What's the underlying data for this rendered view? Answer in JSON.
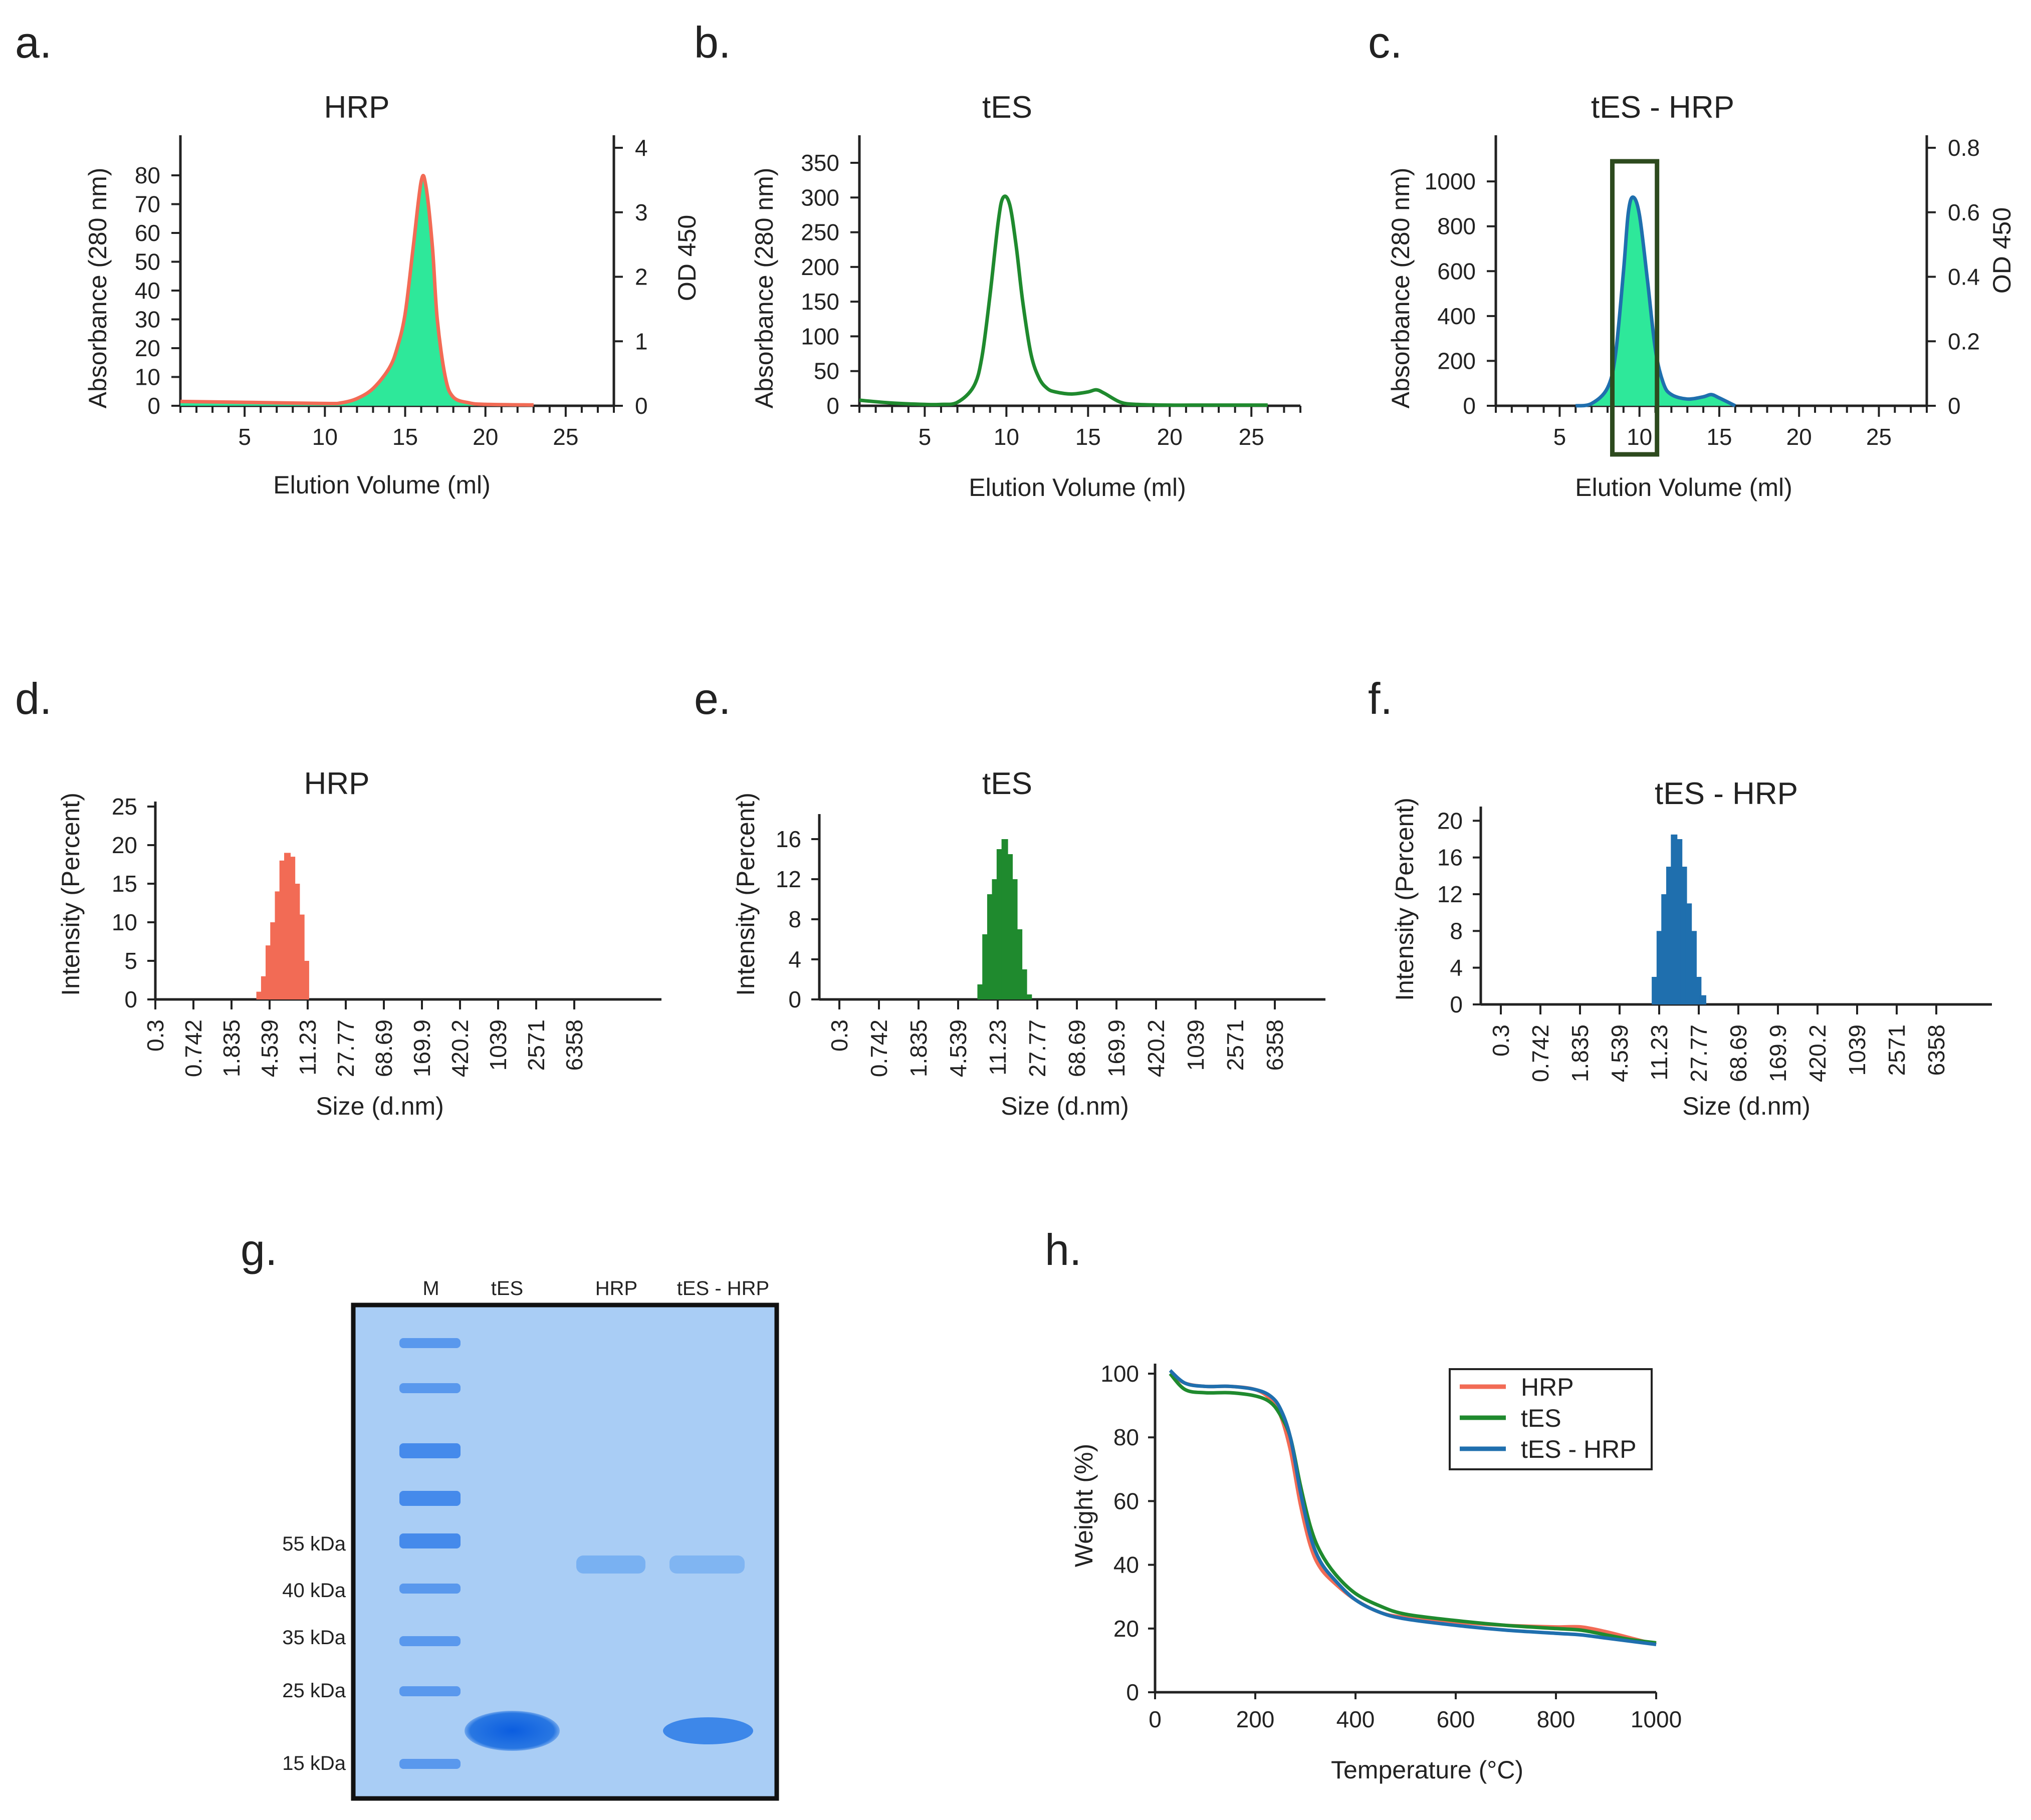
{
  "panel_labels": [
    "a.",
    "b.",
    "c.",
    "d.",
    "e.",
    "f.",
    "g.",
    "h."
  ],
  "colors": {
    "hrp": "#f26b55",
    "tes": "#1f8a2e",
    "tes_hrp": "#1f6fae",
    "fill": "#2ee89a",
    "box": "#2d4a1e",
    "gel_bg": "#a9cdf5",
    "band": "#1a6de0"
  },
  "chart_data": [
    {
      "id": "a",
      "type": "area",
      "title": "HRP",
      "xlabel": "Elution Volume (ml)",
      "ylabel": "Absorbance (280 nm)",
      "y2label": "OD 450",
      "xlim": [
        1,
        28
      ],
      "ylim": [
        0,
        80
      ],
      "y2lim": [
        0,
        4
      ],
      "xticks": [
        5,
        10,
        15,
        20,
        25
      ],
      "yticks": [
        0,
        10,
        20,
        30,
        40,
        50,
        60,
        70,
        80
      ],
      "y2ticks": [
        0,
        1,
        2,
        3,
        4
      ],
      "fill": true,
      "fill_range": [
        11,
        18
      ],
      "series": [
        {
          "x": [
            1,
            5,
            10,
            11,
            12,
            13,
            14,
            14.5,
            15,
            15.5,
            16,
            16.3,
            16.7,
            17,
            17.5,
            18,
            19,
            20,
            23
          ],
          "y": [
            1.5,
            1.2,
            0.8,
            1,
            2.5,
            6,
            13,
            20,
            32,
            55,
            78,
            76,
            55,
            30,
            10,
            3,
            1,
            0.5,
            0.3
          ]
        }
      ]
    },
    {
      "id": "b",
      "type": "line",
      "title": "tES",
      "xlabel": "Elution Volume (ml)",
      "ylabel": "Absorbance (280 nm)",
      "xlim": [
        1,
        28
      ],
      "ylim": [
        0,
        350
      ],
      "xticks": [
        5,
        10,
        15,
        20,
        25
      ],
      "yticks": [
        0,
        50,
        100,
        150,
        200,
        250,
        300,
        350
      ],
      "series": [
        {
          "x": [
            1,
            3,
            5,
            6,
            7,
            8,
            8.5,
            9,
            9.5,
            9.8,
            10.2,
            10.6,
            11,
            11.5,
            12,
            12.5,
            13,
            14,
            15,
            15.5,
            16,
            17,
            18,
            20,
            22,
            24,
            26
          ],
          "y": [
            8,
            4,
            2,
            2,
            5,
            28,
            70,
            160,
            265,
            300,
            290,
            230,
            150,
            75,
            40,
            25,
            20,
            17,
            20,
            23,
            18,
            5,
            2,
            1,
            1,
            1,
            1
          ]
        }
      ]
    },
    {
      "id": "c",
      "type": "area",
      "title": "tES - HRP",
      "xlabel": "Elution Volume (ml)",
      "ylabel": "Absorbance (280 nm)",
      "y2label": "OD 450",
      "xlim": [
        1,
        28
      ],
      "ylim": [
        0,
        1150
      ],
      "y2lim": [
        0,
        0.8
      ],
      "xticks": [
        5,
        10,
        15,
        20,
        25
      ],
      "yticks": [
        0,
        200,
        400,
        600,
        800,
        1000
      ],
      "y2ticks": [
        0,
        0.2,
        0.4,
        0.6,
        0.8
      ],
      "fill": true,
      "fill_range": [
        6,
        16
      ],
      "box_range": [
        8.3,
        11.1
      ],
      "series": [
        {
          "x": [
            6,
            7,
            8,
            8.5,
            9,
            9.3,
            9.6,
            10,
            10.5,
            11,
            11.5,
            12,
            13,
            14,
            14.5,
            15,
            16
          ],
          "y": [
            0,
            10,
            80,
            230,
            600,
            860,
            930,
            850,
            560,
            250,
            100,
            50,
            30,
            40,
            50,
            35,
            0
          ]
        }
      ]
    },
    {
      "id": "d",
      "type": "bar",
      "title": "HRP",
      "xlabel": "Size (d.nm)",
      "ylabel": "Intensity (Percent)",
      "scale": "log",
      "xticks": [
        "0.3",
        "0.742",
        "1.835",
        "4.539",
        "11.23",
        "27.77",
        "68.69",
        "169.9",
        "420.2",
        "1039",
        "2571",
        "6358"
      ],
      "ylim": [
        0,
        25
      ],
      "yticks": [
        0,
        5,
        10,
        15,
        20,
        25
      ],
      "bars": [
        {
          "x": 3.58,
          "y": 1
        },
        {
          "x": 4.0,
          "y": 3
        },
        {
          "x": 4.46,
          "y": 7
        },
        {
          "x": 4.98,
          "y": 10
        },
        {
          "x": 5.56,
          "y": 14
        },
        {
          "x": 6.2,
          "y": 18
        },
        {
          "x": 6.93,
          "y": 19
        },
        {
          "x": 7.73,
          "y": 18.5
        },
        {
          "x": 8.63,
          "y": 15
        },
        {
          "x": 9.64,
          "y": 11
        },
        {
          "x": 10.76,
          "y": 5
        }
      ]
    },
    {
      "id": "e",
      "type": "bar",
      "title": "tES",
      "xlabel": "Size (d.nm)",
      "ylabel": "Intensity (Percent)",
      "scale": "log",
      "xticks": [
        "0.3",
        "0.742",
        "1.835",
        "4.539",
        "11.23",
        "27.77",
        "68.69",
        "169.9",
        "420.2",
        "1039",
        "2571",
        "6358"
      ],
      "ylim": [
        0,
        18
      ],
      "yticks": [
        0,
        4,
        8,
        12,
        16
      ],
      "bars": [
        {
          "x": 7.6,
          "y": 1.5
        },
        {
          "x": 8.5,
          "y": 6.5
        },
        {
          "x": 9.5,
          "y": 10.5
        },
        {
          "x": 10.6,
          "y": 12
        },
        {
          "x": 11.8,
          "y": 15
        },
        {
          "x": 13.2,
          "y": 16
        },
        {
          "x": 14.7,
          "y": 14.5
        },
        {
          "x": 16.4,
          "y": 12
        },
        {
          "x": 18.3,
          "y": 7
        },
        {
          "x": 20.4,
          "y": 3
        },
        {
          "x": 22.8,
          "y": 0.5
        }
      ]
    },
    {
      "id": "f",
      "type": "bar",
      "title": "tES  - HRP",
      "xlabel": "Size (d.nm)",
      "ylabel": "Intensity (Percent)",
      "scale": "log",
      "xticks": [
        "0.3",
        "0.742",
        "1.835",
        "4.539",
        "11.23",
        "27.77",
        "68.69",
        "169.9",
        "420.2",
        "1039",
        "2571",
        "6358"
      ],
      "ylim": [
        0,
        21
      ],
      "yticks": [
        0,
        4,
        8,
        12,
        16,
        20
      ],
      "bars": [
        {
          "x": 10.2,
          "y": 3
        },
        {
          "x": 11.4,
          "y": 8
        },
        {
          "x": 12.7,
          "y": 12
        },
        {
          "x": 14.2,
          "y": 15
        },
        {
          "x": 15.8,
          "y": 18.5
        },
        {
          "x": 17.7,
          "y": 18
        },
        {
          "x": 19.7,
          "y": 15
        },
        {
          "x": 22.0,
          "y": 11
        },
        {
          "x": 24.6,
          "y": 8
        },
        {
          "x": 27.4,
          "y": 3
        },
        {
          "x": 30.6,
          "y": 1
        }
      ]
    },
    {
      "id": "g",
      "type": "table",
      "kind": "gel",
      "lanes": [
        "M",
        "tES",
        "HRP",
        "tES - HRP"
      ],
      "markers": [
        "55 kDa",
        "40 kDa",
        "35 kDa",
        "25 kDa",
        "15 kDa"
      ]
    },
    {
      "id": "h",
      "type": "line",
      "xlabel": "Temperature (°C)",
      "ylabel": "Weight (%)",
      "xlim": [
        0,
        1000
      ],
      "ylim": [
        0,
        100
      ],
      "xticks": [
        0,
        200,
        400,
        600,
        800,
        1000
      ],
      "yticks": [
        0,
        20,
        40,
        60,
        80,
        100
      ],
      "legend": "top-right",
      "series": [
        {
          "name": "HRP",
          "x": [
            30,
            60,
            100,
            150,
            200,
            230,
            250,
            270,
            290,
            310,
            330,
            360,
            400,
            450,
            500,
            600,
            700,
            800,
            850,
            900,
            950,
            1000
          ],
          "y": [
            100,
            97,
            96,
            96,
            95,
            92,
            87,
            76,
            59,
            46,
            39,
            34,
            29,
            25,
            23.5,
            22,
            21,
            20.5,
            20.5,
            19,
            17,
            15
          ]
        },
        {
          "name": "tES",
          "x": [
            30,
            60,
            100,
            150,
            200,
            230,
            250,
            270,
            290,
            310,
            330,
            360,
            400,
            450,
            500,
            600,
            700,
            800,
            850,
            900,
            950,
            1000
          ],
          "y": [
            100,
            95,
            94,
            94,
            93,
            91,
            87,
            80,
            65,
            52,
            44,
            37,
            31,
            27,
            24.5,
            22.5,
            21,
            20,
            19.5,
            18,
            16.5,
            15.5
          ]
        },
        {
          "name": "tES - HRP",
          "x": [
            30,
            60,
            100,
            150,
            200,
            230,
            250,
            270,
            290,
            310,
            330,
            360,
            400,
            450,
            500,
            600,
            700,
            800,
            850,
            900,
            950,
            1000
          ],
          "y": [
            101,
            97,
            96,
            96,
            95,
            93,
            89,
            80,
            63,
            49,
            41,
            35,
            29,
            25,
            23,
            21,
            19.5,
            18.5,
            18,
            17,
            16,
            15
          ]
        }
      ]
    }
  ]
}
